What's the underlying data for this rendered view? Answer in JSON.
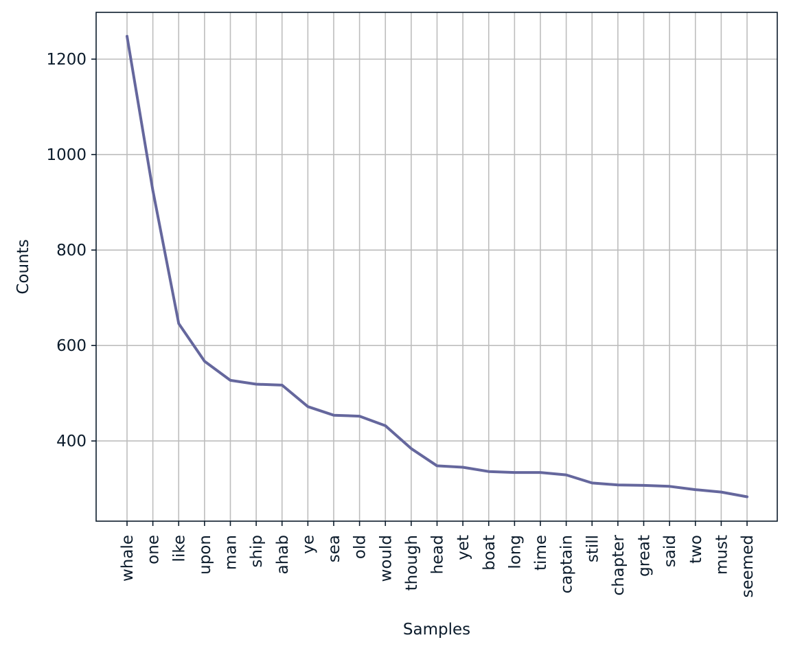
{
  "chart_data": {
    "type": "line",
    "title": "",
    "xlabel": "Samples",
    "ylabel": "Counts",
    "categories": [
      "whale",
      "one",
      "like",
      "upon",
      "man",
      "ship",
      "ahab",
      "ye",
      "sea",
      "old",
      "would",
      "though",
      "head",
      "yet",
      "boat",
      "long",
      "time",
      "captain",
      "still",
      "chapter",
      "great",
      "said",
      "two",
      "must",
      "seemed"
    ],
    "series": [
      {
        "values": [
          1248,
          925,
          646,
          567,
          527,
          519,
          517,
          472,
          454,
          452,
          432,
          384,
          348,
          345,
          336,
          334,
          334,
          329,
          312,
          308,
          307,
          305,
          298,
          293,
          283
        ],
        "color": "#65679d"
      }
    ],
    "yticks": [
      400,
      600,
      800,
      1000,
      1200
    ],
    "ylim": [
      232,
      1298
    ],
    "grid": true,
    "legend": "none"
  }
}
